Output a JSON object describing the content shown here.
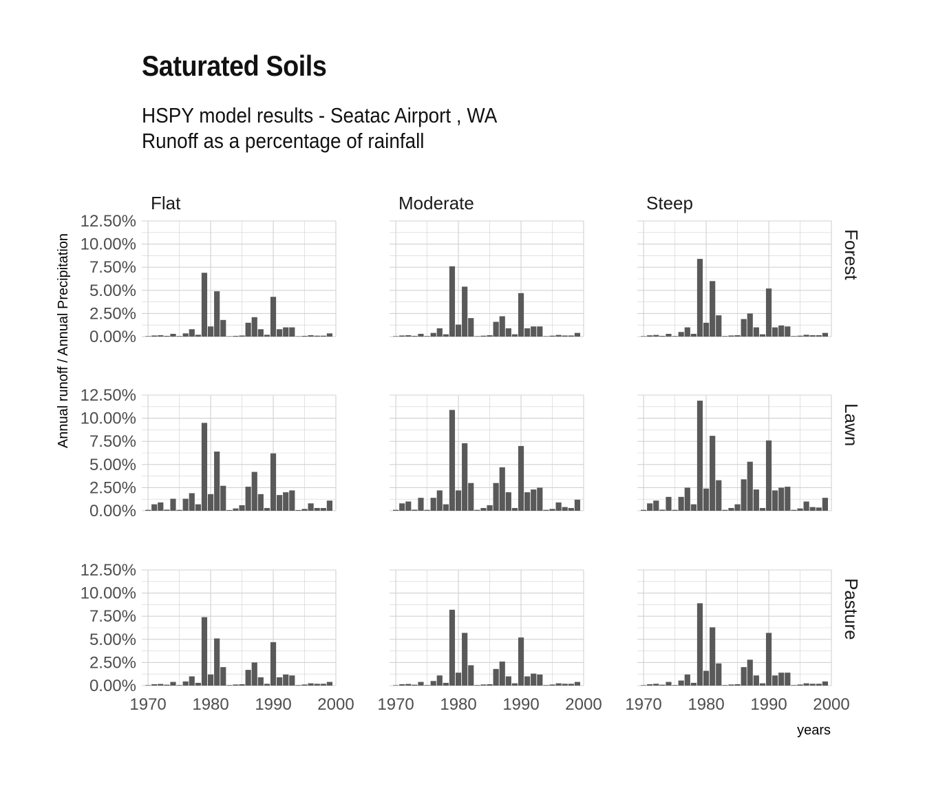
{
  "title": "Saturated Soils",
  "subtitle_line1": "HSPY model results -  Seatac Airport , WA",
  "subtitle_line2": "Runoff as a percentage of rainfall",
  "colors": {
    "bar": "#595959",
    "grid": "#d0d0d0",
    "tick": "#4d4d4d"
  },
  "chart_data": {
    "type": "bar",
    "xlabel": "years",
    "ylabel": "Annual runoff / Annual Precipitation",
    "xlim": [
      1969,
      2000
    ],
    "ylim": [
      0,
      12.5
    ],
    "x_ticks": [
      1970,
      1980,
      1990,
      2000
    ],
    "y_ticks": [
      "0.00%",
      "2.50%",
      "5.00%",
      "7.50%",
      "10.00%",
      "12.50%"
    ],
    "y_tick_values": [
      0,
      2.5,
      5,
      7.5,
      10,
      12.5
    ],
    "grid": true,
    "col_facets": [
      "Flat",
      "Moderate",
      "Steep"
    ],
    "row_facets": [
      "Forest",
      "Lawn",
      "Pasture"
    ],
    "years": [
      1970,
      1971,
      1972,
      1973,
      1974,
      1975,
      1976,
      1977,
      1978,
      1979,
      1980,
      1981,
      1982,
      1983,
      1984,
      1985,
      1986,
      1987,
      1988,
      1989,
      1990,
      1991,
      1992,
      1993,
      1994,
      1995,
      1996,
      1997,
      1998,
      1999
    ],
    "panels": [
      {
        "row": "Forest",
        "col": "Flat",
        "values": [
          0.05,
          0.12,
          0.15,
          0.08,
          0.3,
          0.06,
          0.35,
          0.8,
          0.2,
          6.9,
          1.1,
          4.9,
          1.8,
          0.04,
          0.08,
          0.12,
          1.5,
          2.1,
          0.8,
          0.2,
          4.3,
          0.8,
          1.0,
          1.0,
          0.04,
          0.08,
          0.15,
          0.1,
          0.1,
          0.35
        ]
      },
      {
        "row": "Forest",
        "col": "Moderate",
        "values": [
          0.05,
          0.12,
          0.15,
          0.08,
          0.3,
          0.06,
          0.4,
          0.9,
          0.25,
          7.6,
          1.3,
          5.4,
          2.0,
          0.05,
          0.1,
          0.15,
          1.6,
          2.2,
          0.9,
          0.25,
          4.7,
          0.9,
          1.1,
          1.1,
          0.05,
          0.1,
          0.18,
          0.12,
          0.12,
          0.4
        ]
      },
      {
        "row": "Forest",
        "col": "Steep",
        "values": [
          0.05,
          0.14,
          0.18,
          0.08,
          0.3,
          0.06,
          0.5,
          1.0,
          0.3,
          8.4,
          1.5,
          6.0,
          2.3,
          0.06,
          0.12,
          0.15,
          1.9,
          2.5,
          1.0,
          0.25,
          5.2,
          1.0,
          1.2,
          1.1,
          0.06,
          0.1,
          0.2,
          0.15,
          0.15,
          0.4
        ]
      },
      {
        "row": "Lawn",
        "col": "Flat",
        "values": [
          0.1,
          0.7,
          0.9,
          0.12,
          1.3,
          0.1,
          1.3,
          1.9,
          0.7,
          9.5,
          1.8,
          6.4,
          2.7,
          0.08,
          0.25,
          0.6,
          2.6,
          4.2,
          1.8,
          0.3,
          6.2,
          1.7,
          2.0,
          2.2,
          0.08,
          0.2,
          0.8,
          0.3,
          0.3,
          1.1
        ]
      },
      {
        "row": "Lawn",
        "col": "Moderate",
        "values": [
          0.1,
          0.8,
          1.0,
          0.12,
          1.4,
          0.1,
          1.4,
          2.2,
          0.7,
          10.9,
          2.2,
          7.3,
          3.0,
          0.1,
          0.3,
          0.6,
          3.0,
          4.7,
          2.0,
          0.3,
          7.0,
          2.0,
          2.3,
          2.5,
          0.1,
          0.2,
          0.9,
          0.4,
          0.3,
          1.2
        ]
      },
      {
        "row": "Lawn",
        "col": "Steep",
        "values": [
          0.1,
          0.8,
          1.1,
          0.12,
          1.5,
          0.1,
          1.5,
          2.5,
          0.7,
          11.9,
          2.4,
          8.1,
          3.3,
          0.1,
          0.3,
          0.7,
          3.4,
          5.3,
          2.3,
          0.3,
          7.6,
          2.2,
          2.5,
          2.6,
          0.1,
          0.25,
          1.0,
          0.4,
          0.35,
          1.4
        ]
      },
      {
        "row": "Pasture",
        "col": "Flat",
        "values": [
          0.05,
          0.15,
          0.18,
          0.1,
          0.4,
          0.06,
          0.45,
          1.0,
          0.3,
          7.4,
          1.2,
          5.1,
          2.0,
          0.06,
          0.12,
          0.15,
          1.7,
          2.5,
          0.9,
          0.2,
          4.7,
          0.9,
          1.2,
          1.1,
          0.06,
          0.12,
          0.25,
          0.2,
          0.2,
          0.4
        ]
      },
      {
        "row": "Pasture",
        "col": "Moderate",
        "values": [
          0.05,
          0.15,
          0.18,
          0.1,
          0.4,
          0.06,
          0.5,
          1.1,
          0.3,
          8.2,
          1.4,
          5.7,
          2.2,
          0.06,
          0.12,
          0.15,
          1.8,
          2.6,
          1.0,
          0.25,
          5.2,
          1.0,
          1.3,
          1.2,
          0.06,
          0.12,
          0.25,
          0.2,
          0.2,
          0.4
        ]
      },
      {
        "row": "Pasture",
        "col": "Steep",
        "values": [
          0.05,
          0.15,
          0.2,
          0.1,
          0.4,
          0.06,
          0.55,
          1.2,
          0.3,
          8.9,
          1.6,
          6.3,
          2.4,
          0.06,
          0.12,
          0.15,
          2.0,
          2.8,
          1.1,
          0.25,
          5.7,
          1.1,
          1.4,
          1.4,
          0.06,
          0.12,
          0.25,
          0.2,
          0.2,
          0.45
        ]
      }
    ]
  }
}
